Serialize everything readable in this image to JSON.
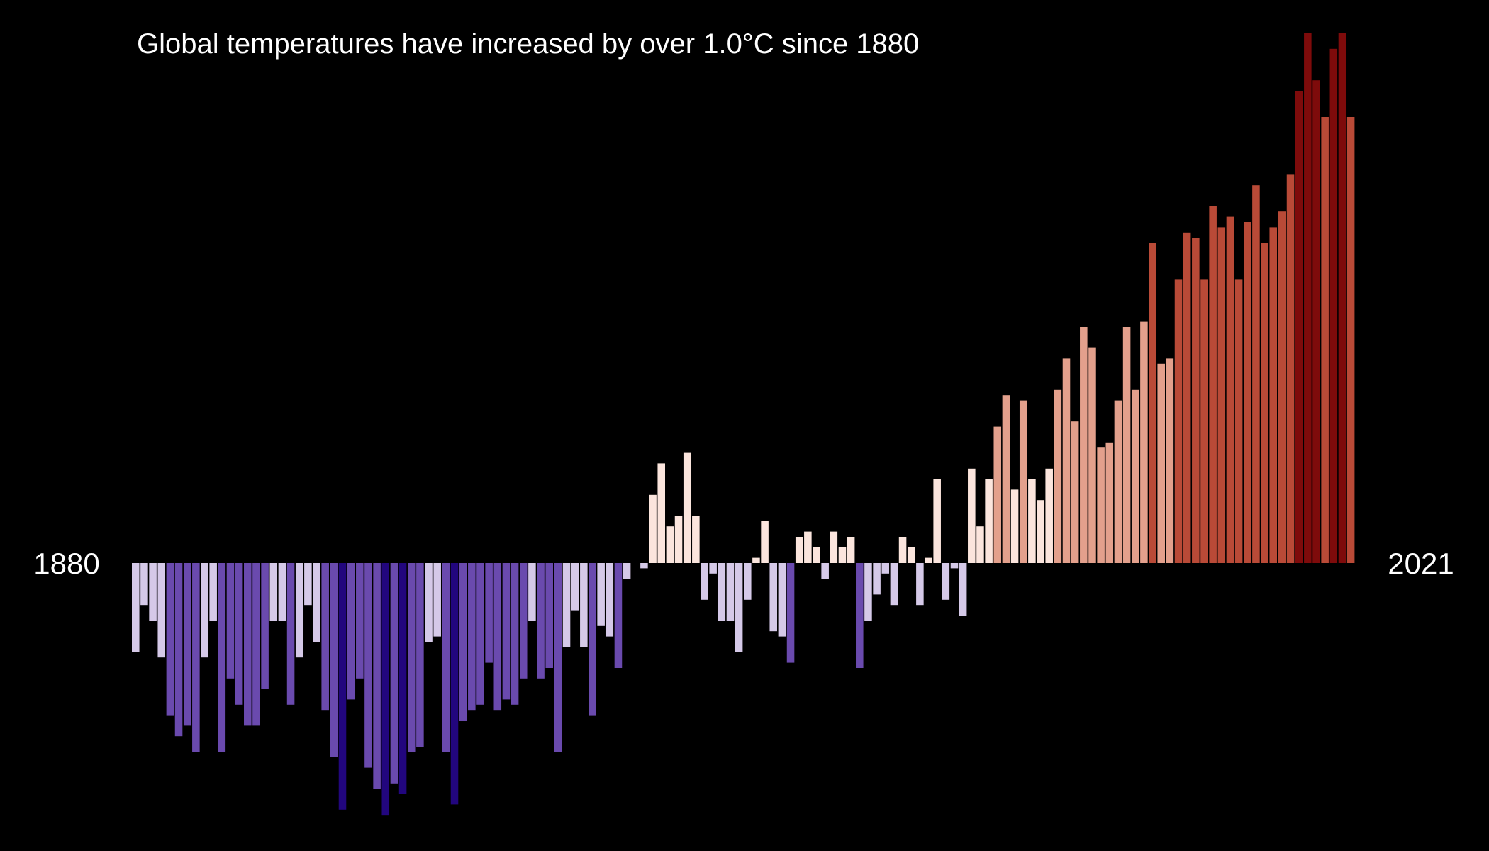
{
  "chart_data": {
    "type": "bar",
    "title": "Global temperatures have increased by over 1.0°C since 1880",
    "xlabel": "",
    "ylabel": "",
    "start_label": "1880",
    "end_label": "2021",
    "x_start": 1880,
    "x_end": 2021,
    "grid": false,
    "legend": "none",
    "ylim": [
      -0.48,
      1.01
    ],
    "colors": {
      "background": "#000000",
      "text": "#ffffff",
      "cold_light": "#d5c9e8",
      "cold_mid": "#6a4aae",
      "cold_dark": "#22067e",
      "warm_light": "#fbe5dd",
      "warm_mid": "#e3a08c",
      "warm_strong": "#b94a37",
      "warm_dark": "#7e0b0b"
    },
    "x": [
      1880,
      1881,
      1882,
      1883,
      1884,
      1885,
      1886,
      1887,
      1888,
      1889,
      1890,
      1891,
      1892,
      1893,
      1894,
      1895,
      1896,
      1897,
      1898,
      1899,
      1900,
      1901,
      1902,
      1903,
      1904,
      1905,
      1906,
      1907,
      1908,
      1909,
      1910,
      1911,
      1912,
      1913,
      1914,
      1915,
      1916,
      1917,
      1918,
      1919,
      1920,
      1921,
      1922,
      1923,
      1924,
      1925,
      1926,
      1927,
      1928,
      1929,
      1930,
      1931,
      1932,
      1933,
      1934,
      1935,
      1936,
      1937,
      1938,
      1939,
      1940,
      1941,
      1942,
      1943,
      1944,
      1945,
      1946,
      1947,
      1948,
      1949,
      1950,
      1951,
      1952,
      1953,
      1954,
      1955,
      1956,
      1957,
      1958,
      1959,
      1960,
      1961,
      1962,
      1963,
      1964,
      1965,
      1966,
      1967,
      1968,
      1969,
      1970,
      1971,
      1972,
      1973,
      1974,
      1975,
      1976,
      1977,
      1978,
      1979,
      1980,
      1981,
      1982,
      1983,
      1984,
      1985,
      1986,
      1987,
      1988,
      1989,
      1990,
      1991,
      1992,
      1993,
      1994,
      1995,
      1996,
      1997,
      1998,
      1999,
      2000,
      2001,
      2002,
      2003,
      2004,
      2005,
      2006,
      2007,
      2008,
      2009,
      2010,
      2011,
      2012,
      2013,
      2014,
      2015,
      2016,
      2017,
      2018,
      2019,
      2020,
      2021
    ],
    "values": [
      -0.17,
      -0.08,
      -0.11,
      -0.18,
      -0.29,
      -0.33,
      -0.31,
      -0.36,
      -0.18,
      -0.11,
      -0.36,
      -0.22,
      -0.27,
      -0.31,
      -0.31,
      -0.24,
      -0.11,
      -0.11,
      -0.27,
      -0.18,
      -0.08,
      -0.15,
      -0.28,
      -0.37,
      -0.47,
      -0.26,
      -0.22,
      -0.39,
      -0.43,
      -0.48,
      -0.42,
      -0.44,
      -0.36,
      -0.35,
      -0.15,
      -0.14,
      -0.36,
      -0.46,
      -0.3,
      -0.28,
      -0.27,
      -0.19,
      -0.28,
      -0.26,
      -0.27,
      -0.22,
      -0.11,
      -0.22,
      -0.2,
      -0.36,
      -0.16,
      -0.09,
      -0.16,
      -0.29,
      -0.12,
      -0.14,
      -0.2,
      -0.03,
      -0.0,
      -0.01,
      0.13,
      0.19,
      0.07,
      0.09,
      0.21,
      0.09,
      -0.07,
      -0.02,
      -0.11,
      -0.11,
      -0.17,
      -0.07,
      0.01,
      0.08,
      -0.13,
      -0.14,
      -0.19,
      0.05,
      0.06,
      0.03,
      -0.03,
      0.06,
      0.03,
      0.05,
      -0.2,
      -0.11,
      -0.06,
      -0.02,
      -0.08,
      0.05,
      0.03,
      -0.08,
      0.01,
      0.16,
      -0.07,
      -0.01,
      -0.1,
      0.18,
      0.07,
      0.16,
      0.26,
      0.32,
      0.14,
      0.31,
      0.16,
      0.12,
      0.18,
      0.33,
      0.39,
      0.27,
      0.45,
      0.41,
      0.22,
      0.23,
      0.31,
      0.45,
      0.33,
      0.46,
      0.61,
      0.38,
      0.39,
      0.54,
      0.63,
      0.62,
      0.54,
      0.68,
      0.64,
      0.66,
      0.54,
      0.65,
      0.72,
      0.61,
      0.64,
      0.67,
      0.74,
      0.9,
      1.01,
      0.92,
      0.85,
      0.98,
      1.01,
      0.85
    ]
  }
}
